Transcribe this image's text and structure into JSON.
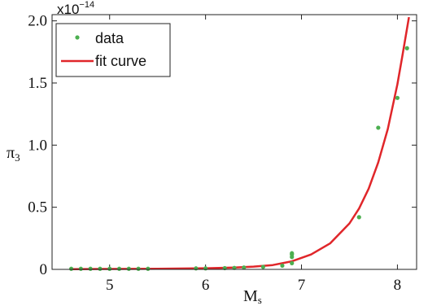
{
  "chart_data": {
    "type": "scatter",
    "title": "",
    "xlabel": "M",
    "xlabel_sub": "s",
    "ylabel": "π",
    "ylabel_sub": "3",
    "y_exponent_base": "x10",
    "y_exponent_power": "−14",
    "xlim": [
      4.4,
      8.2
    ],
    "ylim": [
      0,
      2.05
    ],
    "x_ticks": [
      5,
      6,
      7,
      8
    ],
    "x_tick_labels": [
      "5",
      "6",
      "7",
      "8"
    ],
    "y_ticks": [
      0,
      0.5,
      1.0,
      1.5,
      2.0
    ],
    "y_tick_labels": [
      "0",
      "0.5",
      "1.0",
      "1.5",
      "2.0"
    ],
    "grid": false,
    "legend_position": "top-left",
    "colors": {
      "data": "#4caf50",
      "fit": "#e0262a"
    },
    "series": [
      {
        "name": "data",
        "kind": "scatter",
        "x": [
          4.6,
          4.7,
          4.8,
          4.9,
          5.0,
          5.1,
          5.2,
          5.3,
          5.4,
          5.9,
          6.0,
          6.2,
          6.3,
          6.4,
          6.6,
          6.8,
          6.9,
          6.9,
          6.9,
          6.9,
          7.6,
          7.8,
          8.0,
          8.1
        ],
        "y": [
          0.005,
          0.005,
          0.005,
          0.005,
          0.005,
          0.005,
          0.005,
          0.005,
          0.005,
          0.008,
          0.008,
          0.01,
          0.012,
          0.015,
          0.02,
          0.03,
          0.05,
          0.1,
          0.12,
          0.13,
          0.42,
          1.14,
          1.38,
          1.78
        ]
      },
      {
        "name": "fit curve",
        "kind": "line",
        "x": [
          4.6,
          5.0,
          5.5,
          6.0,
          6.3,
          6.5,
          6.7,
          6.9,
          7.1,
          7.3,
          7.5,
          7.6,
          7.7,
          7.8,
          7.9,
          8.0,
          8.05,
          8.12
        ],
        "y": [
          0.002,
          0.003,
          0.005,
          0.009,
          0.015,
          0.022,
          0.035,
          0.065,
          0.12,
          0.21,
          0.37,
          0.49,
          0.65,
          0.86,
          1.13,
          1.49,
          1.71,
          2.03
        ]
      }
    ]
  }
}
